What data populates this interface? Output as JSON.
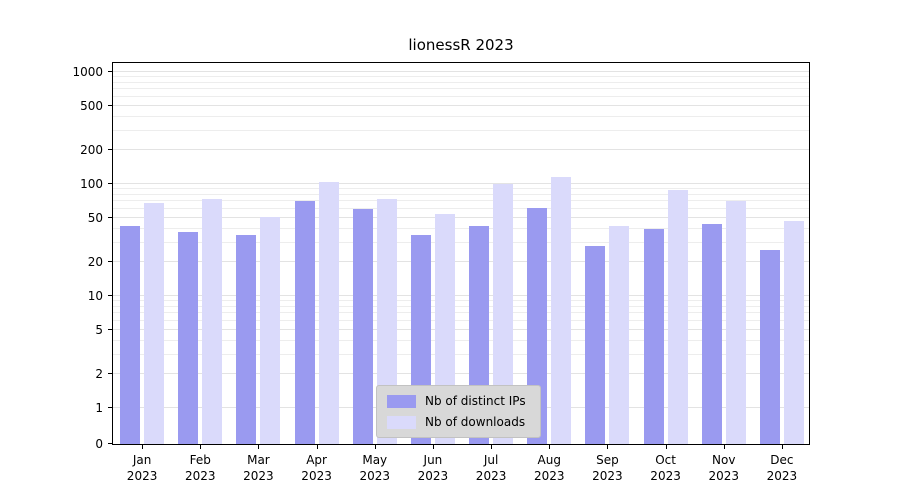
{
  "colors": {
    "ips": "#9a9af0",
    "downloads": "#dadafb",
    "legend_bg": "#d8d8d8"
  },
  "chart_data": {
    "type": "bar",
    "title": "lionessR 2023",
    "categories": [
      "Jan 2023",
      "Feb 2023",
      "Mar 2023",
      "Apr 2023",
      "May 2023",
      "Jun 2023",
      "Jul 2023",
      "Aug 2023",
      "Sep 2023",
      "Oct 2023",
      "Nov 2023",
      "Dec 2023"
    ],
    "series": [
      {
        "name": "Nb of distinct IPs",
        "values": [
          42,
          37,
          35,
          70,
          60,
          35,
          42,
          61,
          28,
          40,
          44,
          26
        ]
      },
      {
        "name": "Nb of downloads",
        "values": [
          68,
          74,
          51,
          105,
          73,
          54,
          100,
          115,
          42,
          88,
          70,
          47
        ]
      }
    ],
    "yscale": "log",
    "y_ticks": [
      0,
      1,
      2,
      5,
      10,
      20,
      50,
      100,
      200,
      500,
      1000
    ],
    "ylim": [
      0,
      1300
    ],
    "grid": "horizontal",
    "legend_position": "lower center inside plot"
  }
}
